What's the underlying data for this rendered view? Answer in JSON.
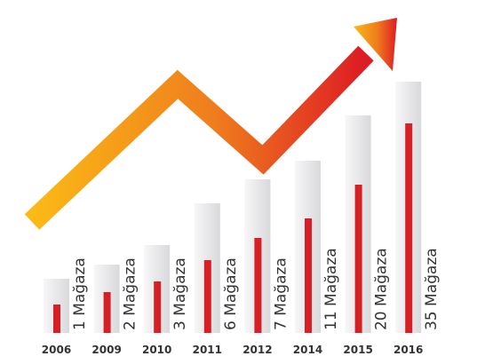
{
  "chart_data": {
    "type": "bar",
    "categories": [
      "2006",
      "2009",
      "2010",
      "2011",
      "2012",
      "2014",
      "2015",
      "2016"
    ],
    "values": [
      1,
      2,
      3,
      6,
      7,
      11,
      20,
      35
    ],
    "data_labels": [
      "1 Mağaza",
      "2 Mağaza",
      "3 Mağaza",
      "6 Mağaza",
      "7 Mağaza",
      "11 Mağaza",
      "20 Mağaza",
      "35 Mağaza"
    ],
    "title": "",
    "xlabel": "",
    "ylabel": "",
    "grid": false,
    "decoration": "rising-trend-arrow"
  },
  "colors": {
    "bar": "#d71f26",
    "bar_bg_light": "#f7f7f8",
    "bar_bg_dark": "#d9d9dc",
    "arrow_start": "#fbba16",
    "arrow_mid": "#ef7c1d",
    "arrow_end": "#dd1b24",
    "text": "#333333"
  }
}
